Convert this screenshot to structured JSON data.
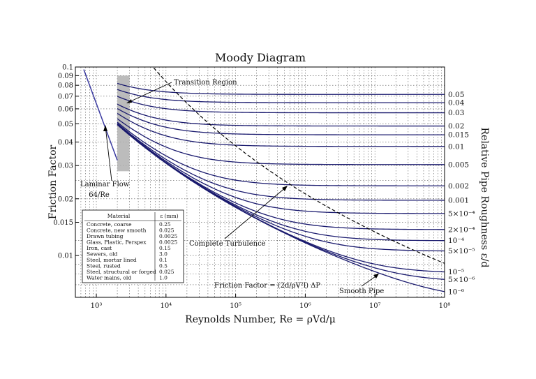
{
  "chart_data": {
    "type": "line",
    "title": "Moody Diagram",
    "xlabel": "Reynolds Number, Re = ρVd/μ",
    "ylabel": "Friction Factor",
    "y2label": "Relative Pipe Roughness ε/d",
    "x_scale": "log",
    "y_scale": "log",
    "xlim": [
      500,
      100000000
    ],
    "ylim": [
      0.006,
      0.1
    ],
    "grid": true,
    "x_ticks": [
      "10³",
      "10⁴",
      "10⁵",
      "10⁶",
      "10⁷",
      "10⁸"
    ],
    "y_ticks": [
      "0.1",
      "0.09",
      "0.08",
      "0.07",
      "0.06",
      "0.05",
      "0.04",
      "0.03",
      "0.02",
      "0.015",
      "0.01"
    ],
    "roughness": [
      0.05,
      0.04,
      0.03,
      0.02,
      0.015,
      0.01,
      0.005,
      0.002,
      0.001,
      0.0005,
      0.0002,
      0.0001,
      5e-05,
      1e-05,
      5e-06,
      1e-06
    ],
    "roughness_labels": [
      "0.05",
      "0.04",
      "0.03",
      "0.02",
      "0.015",
      "0.01",
      "0.005",
      "0.002",
      "0.001",
      "5×10⁻⁴",
      "2×10⁻⁴",
      "10⁻⁴",
      "5×10⁻⁵",
      "10⁻⁵",
      "5×10⁻⁶",
      "10⁻⁶"
    ],
    "laminar": {
      "x": [
        500,
        2000
      ],
      "values": [
        0.128,
        0.032
      ]
    },
    "turbulent_re_start": 2000,
    "transition_region": [
      2000,
      3000
    ],
    "annotations": {
      "transition": "Transition Region",
      "laminar": "Laminar Flow",
      "laminar_formula": "64/Re",
      "complete": "Complete Turbulence",
      "smooth": "Smooth Pipe",
      "friction_formula": "Friction Factor = (2d/ρV²l) ΔP"
    },
    "table": {
      "headers": [
        "Material",
        "ε (mm)"
      ],
      "rows": [
        [
          "Concrete, coarse",
          "0.25"
        ],
        [
          "Concrete, new smooth",
          "0.025"
        ],
        [
          "Drawn tubing",
          "0.0025"
        ],
        [
          "Glass, Plastic, Perspex",
          "0.0025"
        ],
        [
          "Iron, cast",
          "0.15"
        ],
        [
          "Sewers, old",
          "3.0"
        ],
        [
          "Steel, mortar lined",
          "0.1"
        ],
        [
          "Steel, rusted",
          "0.5"
        ],
        [
          "Steel, structural or forged",
          "0.025"
        ],
        [
          "Water mains, old",
          "1.0"
        ]
      ]
    },
    "colors": {
      "curves": "#1a1a6e",
      "laminar": "#3a3aa0",
      "transition": "#b0b0b0"
    }
  }
}
